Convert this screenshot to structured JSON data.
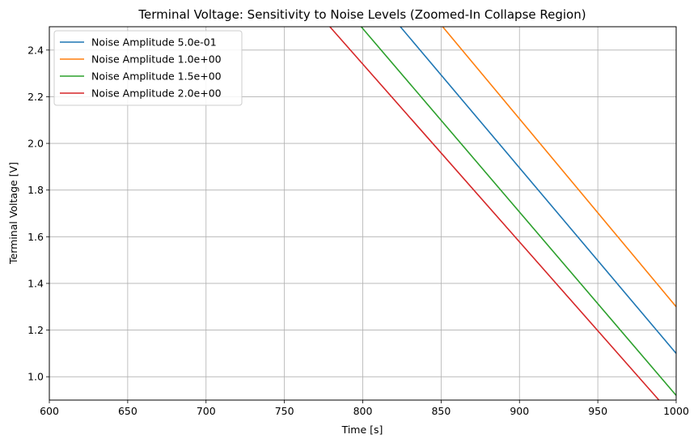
{
  "chart_data": {
    "type": "line",
    "title": "Terminal Voltage: Sensitivity to Noise Levels (Zoomed-In Collapse Region)",
    "xlabel": "Time [s]",
    "ylabel": "Terminal Voltage [V]",
    "xlim": [
      600,
      1000
    ],
    "ylim": [
      0.9,
      2.5
    ],
    "xticks": [
      600,
      650,
      700,
      750,
      800,
      850,
      900,
      950,
      1000
    ],
    "xtick_labels": [
      "600",
      "650",
      "700",
      "750",
      "800",
      "850",
      "900",
      "950",
      "1000"
    ],
    "yticks": [
      1.0,
      1.2,
      1.4,
      1.6,
      1.8,
      2.0,
      2.2,
      2.4
    ],
    "ytick_labels": [
      "1.0",
      "1.2",
      "1.4",
      "1.6",
      "1.8",
      "2.0",
      "2.2",
      "2.4"
    ],
    "grid": true,
    "legend_position": "top-left",
    "series": [
      {
        "name": "Noise Amplitude 5.0e-01",
        "color": "#1f77b4",
        "x": [
          824,
          1000
        ],
        "y": [
          2.5,
          1.1
        ]
      },
      {
        "name": "Noise Amplitude 1.0e+00",
        "color": "#ff7f0e",
        "x": [
          851,
          1000
        ],
        "y": [
          2.5,
          1.3
        ]
      },
      {
        "name": "Noise Amplitude 1.5e+00",
        "color": "#2ca02c",
        "x": [
          799,
          1000
        ],
        "y": [
          2.5,
          0.92
        ]
      },
      {
        "name": "Noise Amplitude 2.0e+00",
        "color": "#d62728",
        "x": [
          779,
          989
        ],
        "y": [
          2.5,
          0.9
        ]
      }
    ]
  }
}
